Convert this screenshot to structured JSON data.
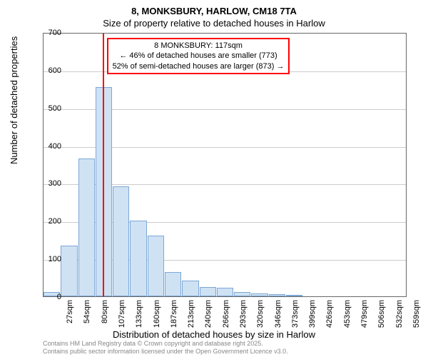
{
  "title": "8, MONKSBURY, HARLOW, CM18 7TA",
  "subtitle": "Size of property relative to detached houses in Harlow",
  "y_axis_title": "Number of detached properties",
  "x_axis_title": "Distribution of detached houses by size in Harlow",
  "chart": {
    "type": "bar",
    "ylim": [
      0,
      700
    ],
    "ytick_step": 100,
    "y_ticks": [
      0,
      100,
      200,
      300,
      400,
      500,
      600,
      700
    ],
    "x_labels": [
      "27sqm",
      "54sqm",
      "80sqm",
      "107sqm",
      "133sqm",
      "160sqm",
      "187sqm",
      "213sqm",
      "240sqm",
      "266sqm",
      "293sqm",
      "320sqm",
      "346sqm",
      "373sqm",
      "399sqm",
      "426sqm",
      "453sqm",
      "479sqm",
      "506sqm",
      "532sqm",
      "559sqm"
    ],
    "values": [
      12,
      135,
      365,
      555,
      292,
      200,
      160,
      65,
      42,
      25,
      22,
      12,
      8,
      5,
      2,
      0,
      0,
      0,
      0,
      0,
      0
    ],
    "bar_fill": "#cfe2f3",
    "bar_border": "#7ba7d7",
    "background_color": "#ffffff",
    "grid_color": "#cccccc",
    "axis_color": "#666666",
    "marker": {
      "position_index": 3.4,
      "color": "#ff0000",
      "label_line1": "8 MONKSBURY: 117sqm",
      "label_line2": "← 46% of detached houses are smaller (773)",
      "label_line3": "52% of semi-detached houses are larger (873) →",
      "box_border": "#ff0000"
    }
  },
  "attribution_line1": "Contains HM Land Registry data © Crown copyright and database right 2025.",
  "attribution_line2": "Contains public sector information licensed under the Open Government Licence v3.0."
}
